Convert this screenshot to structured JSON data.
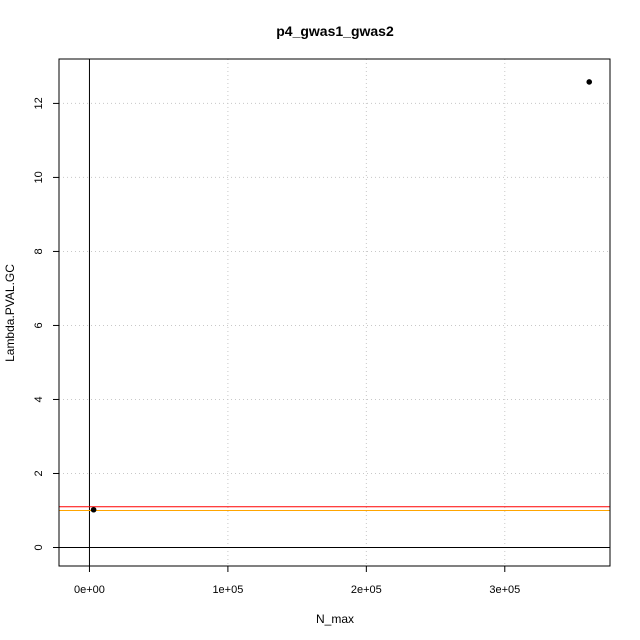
{
  "chart_data": {
    "type": "scatter",
    "title": "p4_gwas1_gwas2",
    "xlabel": "N_max",
    "ylabel": "Lambda.PVAL.GC",
    "xlim": [
      -22000,
      376000
    ],
    "ylim": [
      -0.5,
      13.2
    ],
    "x_ticks": [
      0,
      100000,
      200000,
      300000
    ],
    "x_tick_labels": [
      "0e+00",
      "1e+05",
      "2e+05",
      "3e+05"
    ],
    "y_ticks": [
      0,
      2,
      4,
      6,
      8,
      10,
      12
    ],
    "y_tick_labels": [
      "0",
      "2",
      "4",
      "6",
      "8",
      "10",
      "12"
    ],
    "grid": true,
    "points": [
      {
        "x": 3000,
        "y": 1.02
      },
      {
        "x": 361000,
        "y": 12.58
      }
    ],
    "reference_lines": [
      {
        "orientation": "vertical",
        "value": 0,
        "color": "#000000"
      },
      {
        "orientation": "horizontal",
        "value": 0,
        "color": "#000000"
      },
      {
        "orientation": "horizontal",
        "value": 1.0,
        "color": "#ffa500"
      },
      {
        "orientation": "horizontal",
        "value": 1.1,
        "color": "#ff0000"
      }
    ]
  }
}
